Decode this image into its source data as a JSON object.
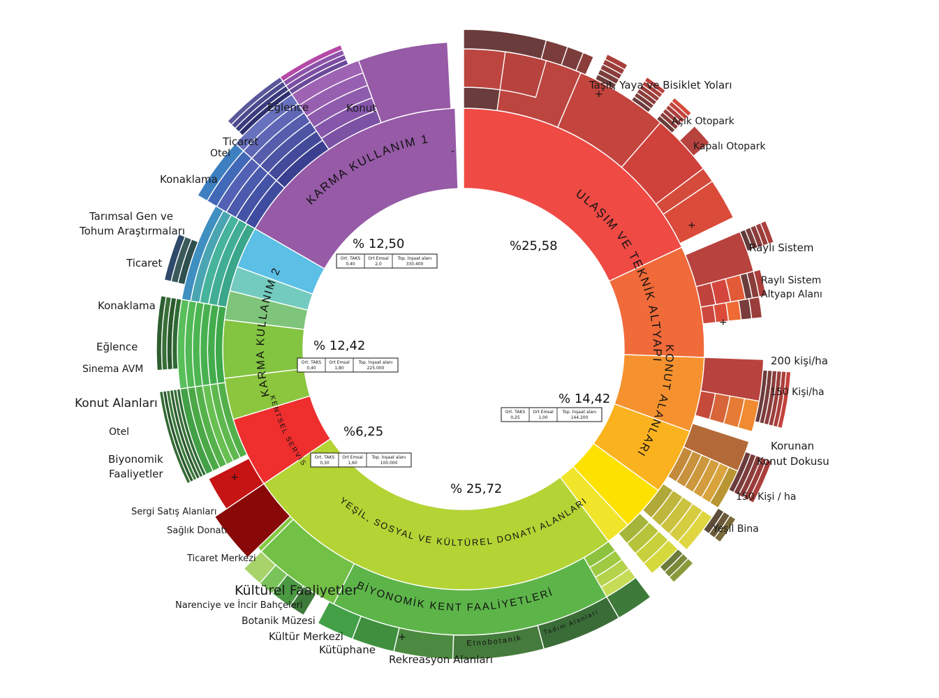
{
  "chart_data": {
    "type": "sunburst",
    "title": "",
    "categories": [
      {
        "name": "ULAŞIM VE TEKNİK ALTYAPI",
        "percent_label": "%25,58",
        "value": 25.58,
        "color": "#ef4a44"
      },
      {
        "name": "KONUT ALANLARI",
        "percent_label": "% 14,42",
        "value": 14.42,
        "color": "#f5922f"
      },
      {
        "name": "YEŞİL, SOSYAL VE KÜLTÜREL DONATI ALANLARI",
        "percent_label": "% 25,72",
        "value": 25.72,
        "color": "#b4d335"
      },
      {
        "name": "KENTSEL SERVİS",
        "percent_label": "%6,25",
        "value": 6.25,
        "color": "#ef2e2e"
      },
      {
        "name": "KARMA KULLANIM 2",
        "percent_label": "% 12,42",
        "value": 12.42,
        "color": "#8cc63e"
      },
      {
        "name": "KARMA KULLANIM 1",
        "percent_label": "% 12,50",
        "value": 12.5,
        "color": "#965aa6"
      }
    ],
    "subcategory_labels": {
      "konut": "KONUT ALANLARI",
      "biyonomik": "BİYONOMİK KENT FAALİYETLERİ",
      "etnobotanik": "Etnobotanik",
      "tadim": "Tadım Alanları"
    },
    "tables": [
      {
        "id": "km1",
        "headers": [
          "Ort. TAKS",
          "Ort Emsal",
          "Top. İnşaat alanı"
        ],
        "values": [
          "0,40",
          "2,0",
          "330.400"
        ]
      },
      {
        "id": "km2",
        "headers": [
          "Ort. TAKS",
          "Ort Emsal",
          "Top. İnşaat alanı"
        ],
        "values": [
          "0,40",
          "1,80",
          "225.000"
        ]
      },
      {
        "id": "konut",
        "headers": [
          "Ort. TAKS",
          "Ort Emsal",
          "Top. İnşaat alanı"
        ],
        "values": [
          "0,25",
          "1,00",
          "144.200"
        ]
      },
      {
        "id": "ks",
        "headers": [
          "Ort. TAKS",
          "Ort Emsal",
          "Top. İnşaat alanı"
        ],
        "values": [
          "0,30",
          "1,60",
          "100.000"
        ]
      }
    ],
    "outer_labels": [
      "Taşıt, Yaya ve Bisiklet Yoları",
      "Açık Otopark",
      "Kapalı Otopark",
      "Raylı Sistem",
      "Raylı Sistem",
      "Altyapı Alanı",
      "200 kişi/ha",
      "150 Kişi/ha",
      "Korunan",
      "Konut Dokusu",
      "150 Kişi / ha",
      "Yeşil Bina",
      "Rekreasyon Alanları",
      "Kütüphane",
      "Kültür Merkezi",
      "Botanik Müzesi",
      "Narenciye ve İncir Bahçeleri",
      "Kültürel Faaliyetler",
      "Ticaret Merkezi",
      "Sağlık Donatı",
      "Sergi Satış Alanları",
      "Biyonomik",
      "Faaliyetler",
      "Otel",
      "Konut Alanları",
      "Sinema AVM",
      "Eğlence",
      "Konaklama",
      "Ticaret",
      "Tarımsal Gen ve",
      "Tohum Araştırmaları",
      "Konaklama",
      "Otel",
      "Ticaret",
      "Eğlence",
      "Konut"
    ],
    "markers": [
      "+",
      "+",
      "+",
      "+",
      "+",
      "-"
    ]
  }
}
